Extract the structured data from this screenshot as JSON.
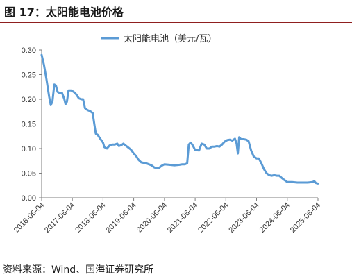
{
  "figure": {
    "title": "图 17：太阳能电池价格",
    "source": "资料来源：Wind、国海证券研究所"
  },
  "chart_data": {
    "type": "line",
    "series": [
      {
        "name": "太阳能电池（美元/瓦）",
        "color": "#5b9bd5",
        "points": [
          [
            "2016-06-04",
            0.29
          ],
          [
            "2016-07-01",
            0.27
          ],
          [
            "2016-08-01",
            0.24
          ],
          [
            "2016-09-01",
            0.205
          ],
          [
            "2016-09-20",
            0.188
          ],
          [
            "2016-10-10",
            0.195
          ],
          [
            "2016-11-01",
            0.23
          ],
          [
            "2016-11-20",
            0.228
          ],
          [
            "2016-12-10",
            0.215
          ],
          [
            "2017-01-01",
            0.213
          ],
          [
            "2017-02-01",
            0.213
          ],
          [
            "2017-03-01",
            0.2
          ],
          [
            "2017-03-15",
            0.19
          ],
          [
            "2017-04-01",
            0.195
          ],
          [
            "2017-04-20",
            0.218
          ],
          [
            "2017-05-20",
            0.218
          ],
          [
            "2017-06-20",
            0.215
          ],
          [
            "2017-07-20",
            0.21
          ],
          [
            "2017-08-20",
            0.202
          ],
          [
            "2017-09-20",
            0.2
          ],
          [
            "2017-10-10",
            0.2
          ],
          [
            "2017-11-01",
            0.182
          ],
          [
            "2017-12-01",
            0.178
          ],
          [
            "2018-01-01",
            0.176
          ],
          [
            "2018-02-01",
            0.172
          ],
          [
            "2018-02-20",
            0.15
          ],
          [
            "2018-03-10",
            0.13
          ],
          [
            "2018-04-01",
            0.128
          ],
          [
            "2018-05-01",
            0.12
          ],
          [
            "2018-06-04",
            0.112
          ],
          [
            "2018-06-20",
            0.103
          ],
          [
            "2018-07-20",
            0.1
          ],
          [
            "2018-08-20",
            0.106
          ],
          [
            "2018-09-20",
            0.108
          ],
          [
            "2018-10-20",
            0.108
          ],
          [
            "2018-11-20",
            0.11
          ],
          [
            "2018-12-10",
            0.105
          ],
          [
            "2019-01-10",
            0.107
          ],
          [
            "2019-02-01",
            0.11
          ],
          [
            "2019-03-01",
            0.106
          ],
          [
            "2019-04-01",
            0.102
          ],
          [
            "2019-05-01",
            0.098
          ],
          [
            "2019-06-04",
            0.09
          ],
          [
            "2019-07-01",
            0.085
          ],
          [
            "2019-08-01",
            0.077
          ],
          [
            "2019-09-01",
            0.072
          ],
          [
            "2019-10-01",
            0.071
          ],
          [
            "2019-11-01",
            0.07
          ],
          [
            "2019-12-01",
            0.068
          ],
          [
            "2020-01-01",
            0.066
          ],
          [
            "2020-02-01",
            0.062
          ],
          [
            "2020-03-01",
            0.06
          ],
          [
            "2020-04-01",
            0.061
          ],
          [
            "2020-05-01",
            0.065
          ],
          [
            "2020-06-04",
            0.068
          ],
          [
            "2020-08-01",
            0.067
          ],
          [
            "2020-10-01",
            0.066
          ],
          [
            "2020-12-01",
            0.067
          ],
          [
            "2021-01-01",
            0.068
          ],
          [
            "2021-02-01",
            0.068
          ],
          [
            "2021-03-01",
            0.07
          ],
          [
            "2021-03-20",
            0.108
          ],
          [
            "2021-04-10",
            0.112
          ],
          [
            "2021-05-01",
            0.108
          ],
          [
            "2021-06-04",
            0.097
          ],
          [
            "2021-07-20",
            0.096
          ],
          [
            "2021-08-20",
            0.11
          ],
          [
            "2021-09-20",
            0.108
          ],
          [
            "2021-10-20",
            0.1
          ],
          [
            "2021-11-20",
            0.1
          ],
          [
            "2021-12-20",
            0.104
          ],
          [
            "2022-01-20",
            0.104
          ],
          [
            "2022-02-20",
            0.105
          ],
          [
            "2022-03-20",
            0.104
          ],
          [
            "2022-04-20",
            0.108
          ],
          [
            "2022-05-20",
            0.114
          ],
          [
            "2022-06-20",
            0.117
          ],
          [
            "2022-07-20",
            0.118
          ],
          [
            "2022-08-20",
            0.116
          ],
          [
            "2022-09-20",
            0.12
          ],
          [
            "2022-10-10",
            0.11
          ],
          [
            "2022-10-25",
            0.09
          ],
          [
            "2022-11-10",
            0.123
          ],
          [
            "2022-12-01",
            0.119
          ],
          [
            "2023-01-01",
            0.119
          ],
          [
            "2023-02-01",
            0.118
          ],
          [
            "2023-03-01",
            0.115
          ],
          [
            "2023-04-01",
            0.096
          ],
          [
            "2023-05-01",
            0.084
          ],
          [
            "2023-06-04",
            0.08
          ],
          [
            "2023-07-01",
            0.08
          ],
          [
            "2023-08-01",
            0.07
          ],
          [
            "2023-09-01",
            0.058
          ],
          [
            "2023-10-01",
            0.05
          ],
          [
            "2023-11-01",
            0.046
          ],
          [
            "2023-12-01",
            0.045
          ],
          [
            "2024-01-01",
            0.046
          ],
          [
            "2024-02-01",
            0.045
          ],
          [
            "2024-03-01",
            0.045
          ],
          [
            "2024-04-01",
            0.04
          ],
          [
            "2024-05-01",
            0.036
          ],
          [
            "2024-06-04",
            0.032
          ],
          [
            "2024-08-01",
            0.032
          ],
          [
            "2024-10-01",
            0.031
          ],
          [
            "2024-12-01",
            0.031
          ],
          [
            "2025-02-01",
            0.031
          ],
          [
            "2025-04-01",
            0.032
          ],
          [
            "2025-04-20",
            0.034
          ],
          [
            "2025-05-10",
            0.03
          ],
          [
            "2025-06-04",
            0.029
          ]
        ]
      }
    ],
    "x_ticks": [
      "2016-06-04",
      "2017-06-04",
      "2018-06-04",
      "2019-06-04",
      "2020-06-04",
      "2021-06-04",
      "2022-06-04",
      "2023-06-04",
      "2024-06-04",
      "2025-06-04"
    ],
    "y_ticks": [
      "0.00",
      "0.05",
      "0.10",
      "0.15",
      "0.20",
      "0.25",
      "0.30"
    ],
    "ylim": [
      0,
      0.3
    ],
    "xlim": [
      "2016-06-04",
      "2025-06-04"
    ],
    "legend": "top-center",
    "grid": false
  }
}
